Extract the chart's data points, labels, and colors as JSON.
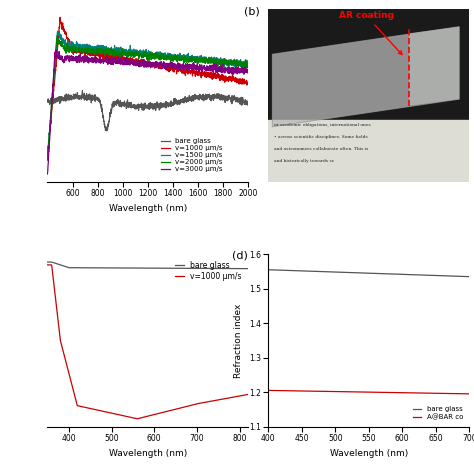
{
  "panel_a": {
    "legend": [
      "bare glass",
      "v=1000 μm/s",
      "v=1500 μm/s",
      "v=2000 μm/s",
      "v=3000 μm/s"
    ],
    "colors": [
      "#555555",
      "#cc0000",
      "#008080",
      "#008000",
      "#800080"
    ],
    "xlabel": "Wavelength (nm)",
    "xlim": [
      400,
      2000
    ],
    "xticks": [
      600,
      800,
      1000,
      1200,
      1400,
      1600,
      1800,
      2000
    ]
  },
  "panel_b": {
    "label": "(b)",
    "annotation": "AR coating",
    "bg_color": "#111111"
  },
  "panel_c": {
    "legend": [
      "bare glass",
      "v=1000 μm/s"
    ],
    "colors": [
      "#555555",
      "#cc0000"
    ],
    "xlabel": "Wavelength (nm)",
    "xlim": [
      350,
      820
    ],
    "xticks": [
      400,
      500,
      600,
      700,
      800
    ]
  },
  "panel_d": {
    "label": "(d)",
    "legend": [
      "bare glass",
      "A@BAR co"
    ],
    "colors": [
      "#555555",
      "#cc0000"
    ],
    "ylabel": "Refraction index",
    "xlabel": "Wavelength (nm)",
    "xlim": [
      400,
      700
    ],
    "ylim": [
      1.1,
      1.6
    ],
    "yticks": [
      1.1,
      1.2,
      1.3,
      1.4,
      1.5,
      1.6
    ],
    "xticks": [
      400,
      450,
      500,
      550,
      600,
      650,
      700
    ]
  }
}
